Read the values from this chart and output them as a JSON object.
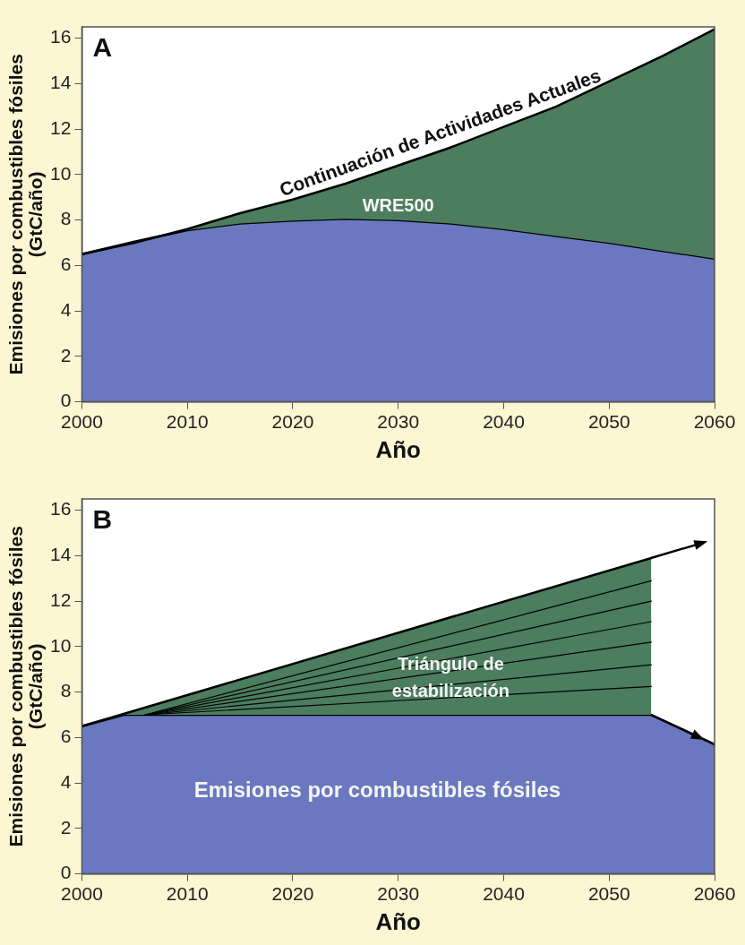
{
  "chart_data": [
    {
      "type": "area",
      "title": "A",
      "xlabel": "Año",
      "ylabel": "Emisiones por combustibles fósiles\n(GtC/año)",
      "x": [
        2000,
        2005,
        2010,
        2015,
        2020,
        2025,
        2030,
        2035,
        2040,
        2045,
        2050,
        2055,
        2060
      ],
      "series": [
        {
          "color": "#6a78bf",
          "values": [
            6.5,
            7.05,
            7.55,
            7.85,
            7.98,
            8.05,
            8.0,
            7.85,
            7.6,
            7.3,
            7.0,
            6.65,
            6.3
          ]
        },
        {
          "color": "#4b7d5e",
          "values": [
            6.5,
            7.0,
            7.6,
            8.3,
            8.9,
            9.6,
            10.4,
            11.2,
            12.1,
            13.0,
            14.1,
            15.2,
            16.4
          ]
        }
      ],
      "xlim": [
        2000,
        2060
      ],
      "xticks": [
        2000,
        2010,
        2020,
        2030,
        2040,
        2050,
        2060
      ],
      "ylim": [
        0,
        16.5
      ],
      "yticks": [
        0,
        2,
        4,
        6,
        8,
        10,
        12,
        14,
        16
      ],
      "annotations": [
        "Continuación de Actividades Actuales",
        "WRE500"
      ]
    },
    {
      "type": "area",
      "title": "B",
      "xlabel": "Año",
      "ylabel": "Emisiones por combustibles fósiles\n(GtC/año)",
      "series": [
        {
          "color": "#6a78bf",
          "x": [
            2000,
            2004,
            2054,
            2060
          ],
          "values": [
            6.5,
            7.0,
            7.0,
            5.7
          ]
        },
        {
          "color": "#4b7d5e",
          "x": [
            2000,
            2054
          ],
          "values": [
            6.5,
            13.9
          ]
        },
        {
          "type": "line",
          "color": "#000000",
          "x": [
            2006,
            2054
          ],
          "values": [
            7.0,
            8.25
          ]
        },
        {
          "type": "line",
          "color": "#000000",
          "x": [
            2006,
            2054
          ],
          "values": [
            7.0,
            9.2
          ]
        },
        {
          "type": "line",
          "color": "#000000",
          "x": [
            2006,
            2054
          ],
          "values": [
            7.0,
            10.2
          ]
        },
        {
          "type": "line",
          "color": "#000000",
          "x": [
            2006,
            2054
          ],
          "values": [
            7.0,
            11.1
          ]
        },
        {
          "type": "line",
          "color": "#000000",
          "x": [
            2006,
            2054
          ],
          "values": [
            7.0,
            12.0
          ]
        },
        {
          "type": "line",
          "color": "#000000",
          "x": [
            2006,
            2054
          ],
          "values": [
            7.0,
            12.9
          ]
        }
      ],
      "xlim": [
        2000,
        2060
      ],
      "xticks": [
        2000,
        2010,
        2020,
        2030,
        2040,
        2050,
        2060
      ],
      "ylim": [
        0,
        16.5
      ],
      "yticks": [
        0,
        2,
        4,
        6,
        8,
        10,
        12,
        14,
        16
      ],
      "annotations": [
        "Triángulo de estabilización",
        "Emisiones por combustibles fósiles"
      ]
    }
  ]
}
